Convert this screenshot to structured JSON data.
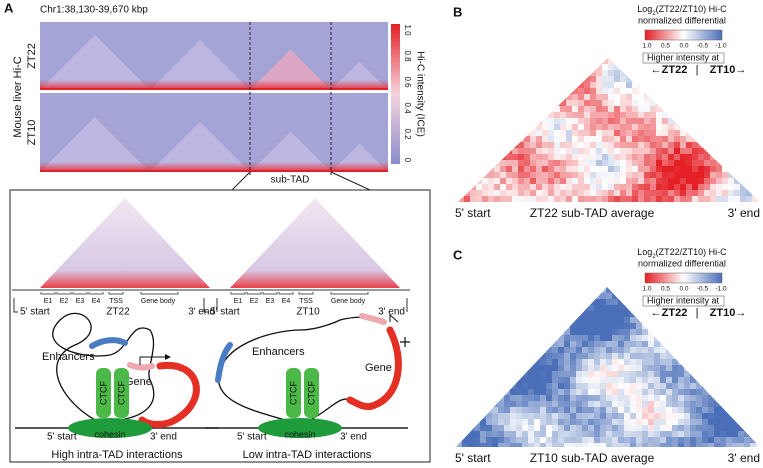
{
  "panel_a": {
    "label": "A",
    "region": "Chr1:38,130-39,670 kbp",
    "y_title": "Mouse liver Hi-C",
    "rows": [
      "ZT22",
      "ZT10"
    ],
    "colorbar_title": "Hi-C intensity (ICE)",
    "colorbar_ticks": [
      "1.0",
      "0.8",
      "0.6",
      "0.4",
      "0.2",
      "0"
    ],
    "sub_tad": "sub-TAD",
    "insets": [
      {
        "elements": [
          "E1",
          "E2",
          "E3",
          "E4",
          "TSS",
          "Gene body"
        ],
        "start": "5' start",
        "name": "ZT22",
        "end": "3' end",
        "enhancers": "Enhancers",
        "gene": "Gene",
        "ctcf": [
          "CTCF",
          "CTCF"
        ],
        "cohesin": "cohesin",
        "diagram_start": "5' start",
        "diagram_end": "3' end",
        "caption": "High intra-TAD interactions"
      },
      {
        "elements": [
          "E1",
          "E2",
          "E3",
          "E4",
          "TSS",
          "Gene body"
        ],
        "start": "5' start",
        "name": "ZT10",
        "end": "3' end",
        "enhancers": "Enhancers",
        "gene": "Gene",
        "ctcf": [
          "CTCF",
          "CTCF"
        ],
        "cohesin": "cohesin",
        "diagram_start": "5' start",
        "diagram_end": "3' end",
        "caption": "Low intra-TAD interactions"
      }
    ]
  },
  "panel_b": {
    "label": "B",
    "title_parts": [
      "Log",
      "2",
      "(ZT22/ZT10) Hi-C"
    ],
    "subtitle": "normalized differential",
    "colorbar_ticks": [
      "1.0",
      "0.5",
      "0.0",
      "-0.5",
      "-1.0"
    ],
    "higher": "Higher intensity at",
    "left": "←ZT22",
    "sep": "|",
    "right": "ZT10→",
    "start": "5' start",
    "name": "ZT22 sub-TAD average",
    "end": "3' end"
  },
  "panel_c": {
    "label": "C",
    "title_parts": [
      "Log",
      "2",
      "(ZT22/ZT10) Hi-C"
    ],
    "subtitle": "normalized differential",
    "colorbar_ticks": [
      "1.0",
      "0.5",
      "0.0",
      "-0.5",
      "-1.0"
    ],
    "higher": "Higher intensity at",
    "left": "←ZT22",
    "sep": "|",
    "right": "ZT10→",
    "start": "5' start",
    "name": "ZT10 sub-TAD average",
    "end": "3' end"
  }
}
